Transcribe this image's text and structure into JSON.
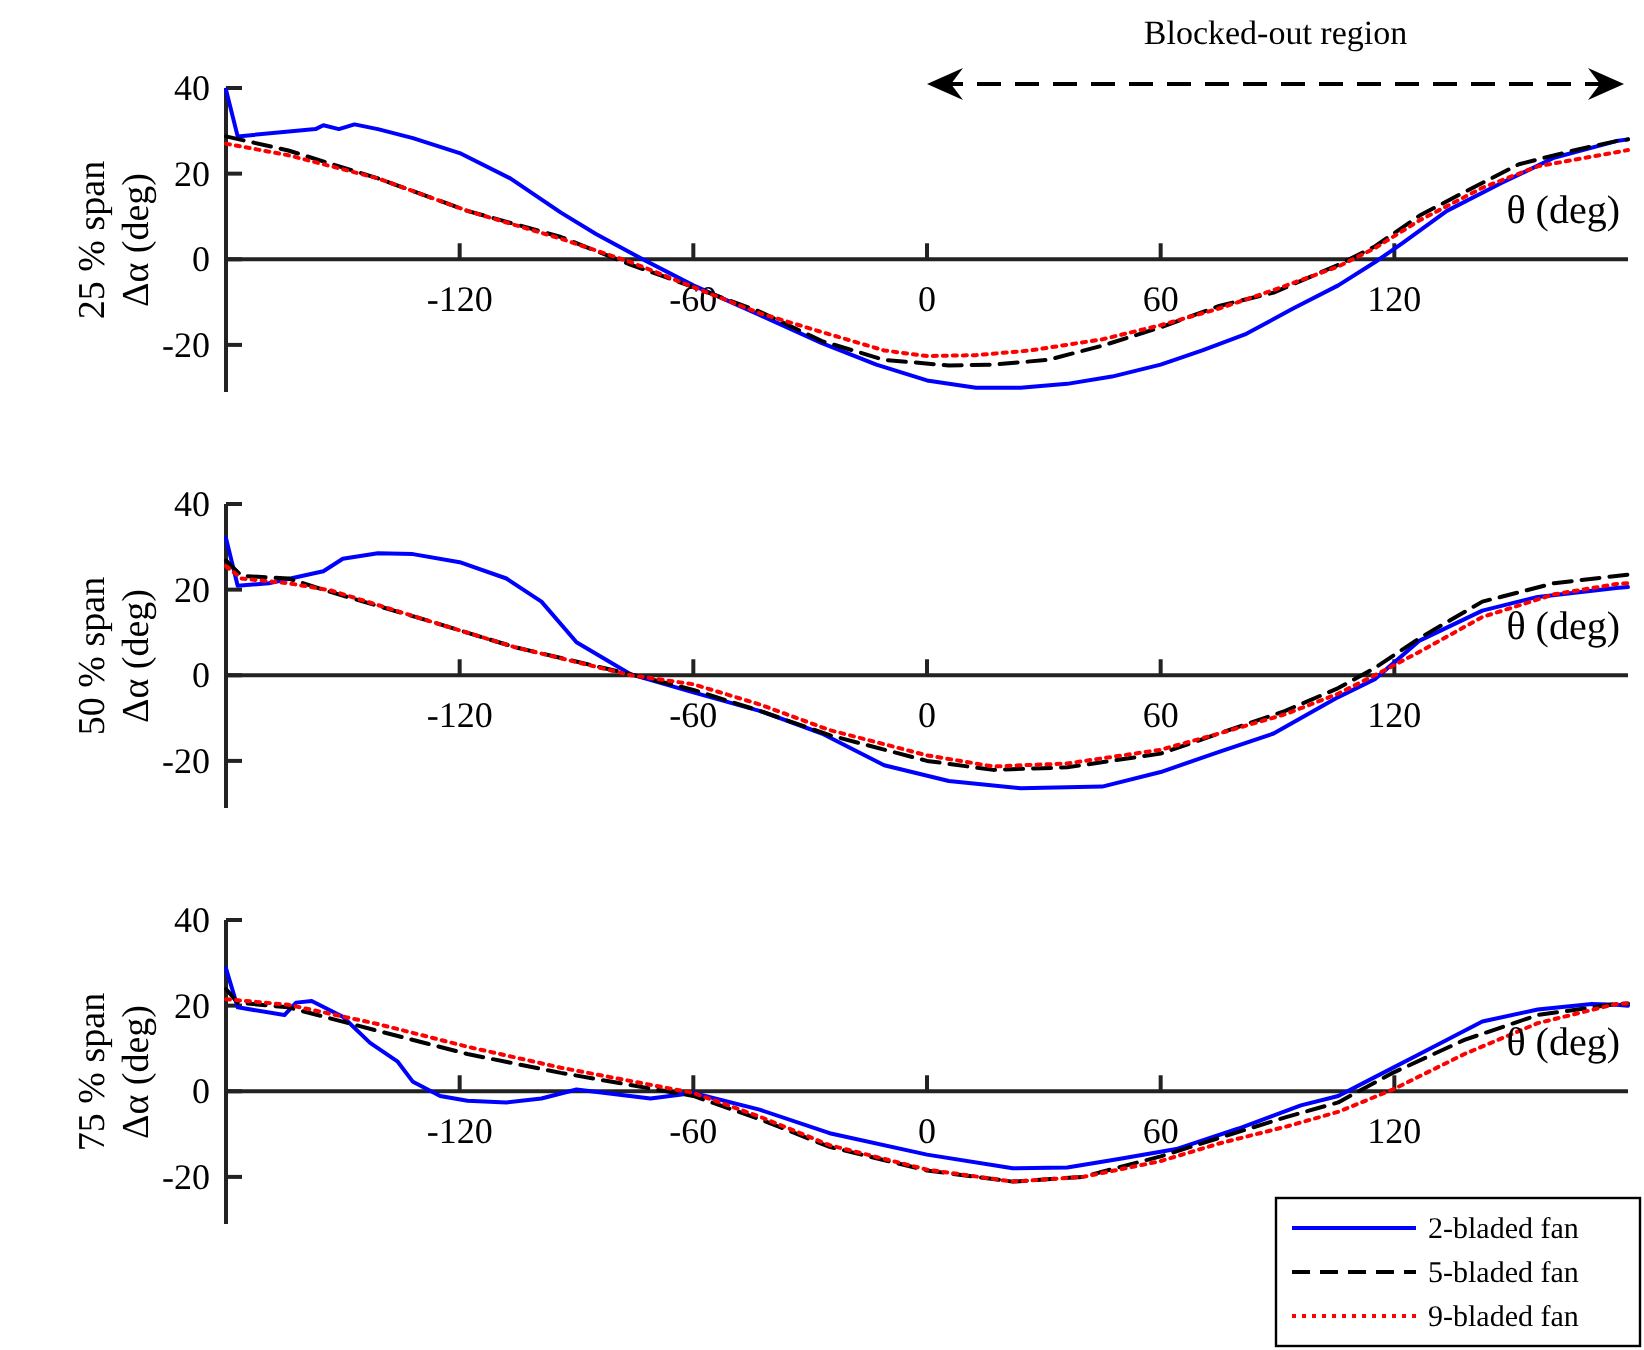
{
  "chart_data": [
    {
      "type": "line",
      "ylabel": "25 % span\nΔα (deg)",
      "xlabel": "θ (deg)",
      "annotations": [
        "Blocked-out region"
      ],
      "xlim": [
        -180,
        180
      ],
      "ylim": [
        -31,
        40
      ],
      "xticks": [
        -120,
        -60,
        0,
        60,
        120
      ],
      "yticks": [
        -20,
        0,
        20,
        40
      ],
      "grid": false,
      "legend": false,
      "series": [
        {
          "color": "#0000ff",
          "line_style": "solid",
          "x": [
            -180,
            -177,
            -157,
            -155,
            -151,
            -147,
            -141,
            -132,
            -120,
            -107,
            -94,
            -85,
            -73,
            -60,
            -43,
            -27,
            -13,
            0,
            12.6,
            24,
            36,
            47.5,
            60,
            70.7,
            82,
            94,
            105.6,
            115,
            122,
            133.5,
            147.5,
            161,
            177,
            180
          ],
          "values": [
            39.6,
            28.7,
            30.4,
            31.3,
            30.4,
            31.5,
            30.4,
            28.3,
            24.8,
            18.9,
            10.9,
            5.9,
            0,
            -6.1,
            -13,
            -19.6,
            -24.6,
            -28.3,
            -30,
            -30,
            -29.1,
            -27.4,
            -24.6,
            -21.3,
            -17.4,
            -11.5,
            -6.1,
            -0.7,
            3.7,
            11.3,
            17.8,
            23.7,
            27.6,
            28
          ]
        },
        {
          "color": "#000000",
          "line_style": "dashed",
          "x": [
            -180,
            -164,
            -141,
            -118,
            -94,
            -76,
            -60,
            -43,
            -27,
            -11,
            5.6,
            17,
            31,
            45,
            60,
            75,
            89,
            105.6,
            115,
            126.5,
            138,
            152,
            166,
            177,
            180
          ],
          "values": [
            28.7,
            25.4,
            18.9,
            11.3,
            5.2,
            -1.3,
            -6.5,
            -12.2,
            -19.1,
            -23.5,
            -24.8,
            -24.6,
            -23.5,
            -20.2,
            -15.9,
            -10.9,
            -7.8,
            -1.3,
            3,
            10.2,
            15.7,
            22.2,
            25.4,
            27.6,
            28
          ]
        },
        {
          "color": "#ff0000",
          "line_style": "dotted",
          "x": [
            -180,
            -164,
            -141,
            -118,
            -94,
            -76,
            -60,
            -43,
            -27,
            -11,
            0,
            12.6,
            26.5,
            45,
            60,
            75,
            89,
            105.6,
            115,
            126.5,
            142.6,
            156.8,
            177,
            180
          ],
          "values": [
            27,
            24.3,
            18.9,
            11.3,
            4.8,
            -0.7,
            -6.5,
            -12.6,
            -17,
            -21.3,
            -22.6,
            -22.4,
            -21.3,
            -18.7,
            -15.4,
            -11.5,
            -7.2,
            -1.7,
            2.6,
            9.1,
            16.7,
            21.7,
            25,
            25.5
          ]
        }
      ]
    },
    {
      "type": "line",
      "ylabel": "50 % span\nΔα (deg)",
      "xlabel": "θ (deg)",
      "xlim": [
        -180,
        180
      ],
      "ylim": [
        -31,
        40
      ],
      "xticks": [
        -120,
        -60,
        0,
        60,
        120
      ],
      "yticks": [
        -20,
        0,
        20,
        40
      ],
      "grid": false,
      "legend": false,
      "series": [
        {
          "color": "#0000ff",
          "line_style": "solid",
          "x": [
            -180,
            -177,
            -169,
            -155,
            -150,
            -141,
            -132,
            -120,
            -108,
            -99,
            -90,
            -76,
            -60,
            -43,
            -27,
            -11,
            5.6,
            24,
            45,
            60,
            75,
            89,
            105.6,
            115,
            126.5,
            142.6,
            156.8,
            177,
            180
          ],
          "values": [
            32,
            20.9,
            21.5,
            24.3,
            27.2,
            28.5,
            28.3,
            26.4,
            22.6,
            17.2,
            7.7,
            0.2,
            -4,
            -8.3,
            -13.6,
            -21,
            -24.7,
            -26.4,
            -26,
            -22.6,
            -17.9,
            -13.6,
            -5.1,
            -0.9,
            8.1,
            15.1,
            18.3,
            20.4,
            20.6
          ]
        },
        {
          "color": "#000000",
          "line_style": "dashed",
          "x": [
            -180,
            -176,
            -164,
            -153,
            -129,
            -106,
            -76,
            -60,
            -43,
            -25,
            0,
            17,
            36,
            60,
            75,
            92,
            105.6,
            115,
            126.5,
            142.6,
            161,
            177,
            180
          ],
          "values": [
            26.8,
            23.2,
            22.6,
            19.4,
            13,
            6.6,
            0.2,
            -3.4,
            -8.3,
            -14,
            -20,
            -22.1,
            -21.5,
            -18.3,
            -13.6,
            -8.3,
            -3,
            1.7,
            8.7,
            17.2,
            21.5,
            23.2,
            23.5
          ]
        },
        {
          "color": "#ff0000",
          "line_style": "dotted",
          "x": [
            -180,
            -176,
            -164,
            -153,
            -129,
            -106,
            -76,
            -60,
            -43,
            -25,
            0,
            17,
            36,
            60,
            75,
            92,
            105.6,
            115,
            126.5,
            142.6,
            161,
            177,
            180
          ],
          "values": [
            25.5,
            22.6,
            21.5,
            19.8,
            13,
            6.6,
            0,
            -2.1,
            -6.8,
            -12.8,
            -18.7,
            -21.3,
            -20.6,
            -17.4,
            -13.6,
            -9.1,
            -4.3,
            0,
            5.5,
            13.6,
            18.9,
            21.3,
            21.5
          ]
        }
      ]
    },
    {
      "type": "line",
      "ylabel": "75 % span\nΔα (deg)",
      "xlabel": "θ (deg)",
      "xlim": [
        -180,
        180
      ],
      "ylim": [
        -31,
        40
      ],
      "xticks": [
        -120,
        -60,
        0,
        60,
        120
      ],
      "yticks": [
        -20,
        0,
        20,
        40
      ],
      "grid": false,
      "legend": "bottom right",
      "series": [
        {
          "name": "2-bladed fan",
          "color": "#0000ff",
          "line_style": "solid",
          "x": [
            -180,
            -177,
            -165,
            -162,
            -158,
            -150,
            -143,
            -136,
            -132,
            -125,
            -118,
            -108,
            -99,
            -90,
            -80,
            -71,
            -60,
            -43,
            -25,
            0,
            22,
            36,
            50,
            64,
            80,
            96,
            105.6,
            115,
            126.5,
            142.6,
            156.8,
            170.7,
            177,
            180
          ],
          "values": [
            28.7,
            19.6,
            17.8,
            20.7,
            21.1,
            17.4,
            11.3,
            7,
            2.2,
            -1.1,
            -2.2,
            -2.6,
            -1.7,
            0.4,
            -0.7,
            -1.7,
            -0.4,
            -4.3,
            -9.8,
            -14.8,
            -18,
            -17.8,
            -15.7,
            -13.5,
            -8.7,
            -3.3,
            -1.1,
            3.3,
            8.7,
            16.3,
            19.1,
            20.4,
            20.2,
            20
          ]
        },
        {
          "name": "5-bladed fan",
          "color": "#000000",
          "line_style": "dashed",
          "x": [
            -180,
            -177,
            -164,
            -141,
            -118,
            -94,
            -60,
            -43,
            -25,
            0,
            22,
            40,
            60,
            75,
            92,
            105.6,
            119.6,
            138,
            156.8,
            177,
            180
          ],
          "values": [
            23.9,
            20.7,
            19.6,
            14.1,
            8.7,
            4.3,
            -1.1,
            -6.5,
            -13,
            -18.5,
            -21.1,
            -20,
            -15.2,
            -10.9,
            -6.1,
            -2.6,
            4.3,
            12,
            17.8,
            20.4,
            20.5
          ]
        },
        {
          "name": "9-bladed fan",
          "color": "#ff0000",
          "line_style": "dotted",
          "x": [
            -180,
            -164,
            -141,
            -118,
            -94,
            -60,
            -43,
            -25,
            0,
            22,
            40,
            60,
            75,
            92,
            105.6,
            119.6,
            138,
            156.8,
            177,
            180
          ],
          "values": [
            21.5,
            20.2,
            15.7,
            10.4,
            5.5,
            -0.4,
            -5.9,
            -12.6,
            -18.3,
            -21.1,
            -20,
            -16.3,
            -12.2,
            -8.3,
            -4.8,
            0.4,
            8.7,
            15.9,
            20.4,
            20.5
          ]
        }
      ]
    }
  ]
}
